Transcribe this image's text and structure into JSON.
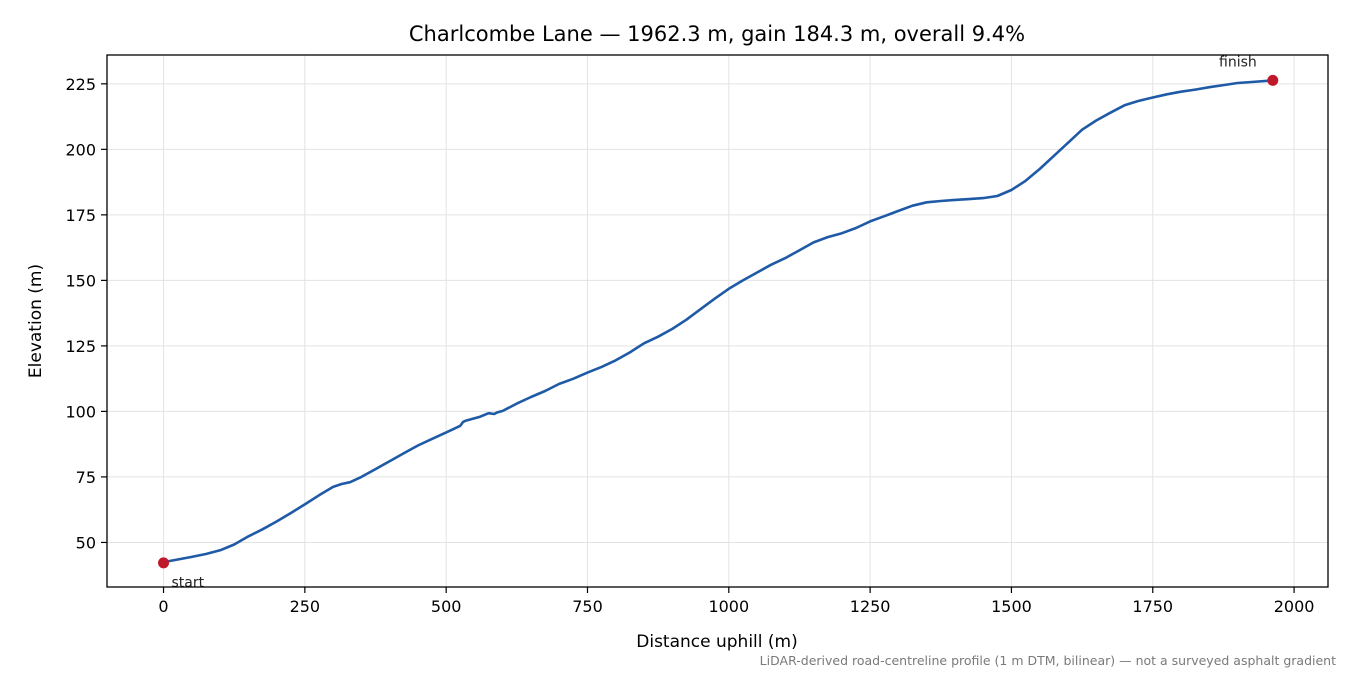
{
  "chart_data": {
    "type": "line",
    "title": "Charlcombe Lane — 1962.3 m, gain 184.3 m, overall 9.4%",
    "xlabel": "Distance uphill (m)",
    "ylabel": "Elevation (m)",
    "xlim": [
      -100,
      2060
    ],
    "ylim": [
      33,
      236
    ],
    "xticks": [
      0,
      250,
      500,
      750,
      1000,
      1250,
      1500,
      1750,
      2000
    ],
    "yticks": [
      50,
      75,
      100,
      125,
      150,
      175,
      200,
      225
    ],
    "grid": true,
    "footnote": "LiDAR-derived road-centreline profile (1 m DTM, bilinear) — not a surveyed asphalt gradient",
    "line_color": "#1f5aa6",
    "marker_color": "#c0182b",
    "series": [
      {
        "x": [
          0,
          25,
          50,
          75,
          100,
          125,
          150,
          175,
          200,
          225,
          250,
          275,
          300,
          315,
          330,
          350,
          375,
          400,
          425,
          450,
          475,
          500,
          525,
          530,
          535,
          560,
          575,
          585,
          590,
          600,
          625,
          650,
          675,
          700,
          725,
          750,
          775,
          800,
          825,
          850,
          875,
          900,
          925,
          950,
          975,
          1000,
          1025,
          1050,
          1075,
          1100,
          1125,
          1150,
          1175,
          1200,
          1225,
          1250,
          1275,
          1300,
          1325,
          1350,
          1375,
          1400,
          1425,
          1450,
          1475,
          1500,
          1525,
          1550,
          1575,
          1600,
          1625,
          1650,
          1675,
          1700,
          1725,
          1750,
          1775,
          1800,
          1825,
          1850,
          1875,
          1900,
          1925,
          1962.3
        ],
        "y": [
          42.5,
          43.5,
          44.5,
          45.6,
          47.0,
          49.2,
          52.3,
          55.0,
          58.0,
          61.2,
          64.5,
          68.0,
          71.2,
          72.3,
          73.0,
          75.0,
          78.0,
          81.0,
          84.0,
          87.0,
          89.5,
          92.0,
          94.5,
          96.0,
          96.5,
          98.0,
          99.3,
          99.0,
          99.6,
          100.2,
          103.0,
          105.5,
          107.8,
          110.5,
          112.5,
          114.8,
          117.0,
          119.5,
          122.5,
          126.0,
          128.5,
          131.5,
          135.0,
          139.0,
          143.0,
          146.8,
          150.0,
          153.0,
          156.0,
          158.5,
          161.5,
          164.5,
          166.5,
          168.0,
          170.0,
          172.5,
          174.5,
          176.5,
          178.5,
          179.8,
          180.3,
          180.7,
          181.0,
          181.4,
          182.2,
          184.5,
          188.0,
          192.5,
          197.5,
          202.5,
          207.5,
          211.0,
          214.0,
          216.8,
          218.5,
          219.8,
          221.0,
          222.0,
          222.8,
          223.7,
          224.5,
          225.3,
          225.7,
          226.3
        ]
      }
    ],
    "annotations": [
      {
        "label": "start",
        "x": 0,
        "y": 42.2
      },
      {
        "label": "finish",
        "x": 1962.3,
        "y": 226.3
      }
    ]
  }
}
